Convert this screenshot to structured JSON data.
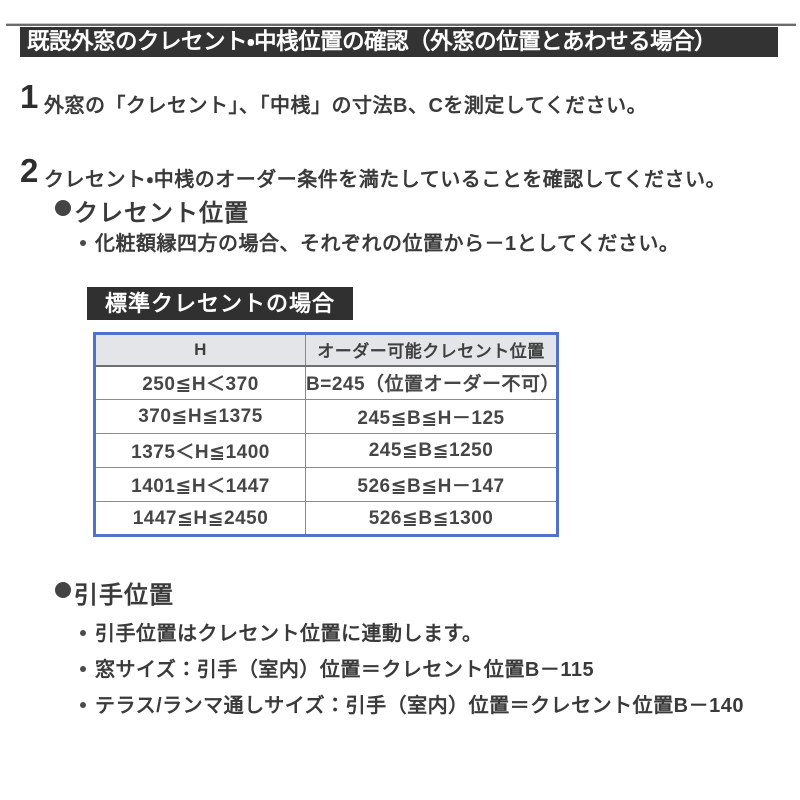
{
  "colors": {
    "bar-bg": "#333333",
    "label-bg": "#303030",
    "table-border": "#5271cc",
    "grid-line": "#8a8a8a",
    "header-cell-bg": "#e3e5e8",
    "rule": "#6b6b6b"
  },
  "title_bar": {
    "text": "既設外窓のクレセント・中桟位置の確認（外窓の位置とあわせる場合）"
  },
  "steps": [
    {
      "number": "1",
      "text": "外窓の「クレセント」、「中桟」の寸法B、Cを測定してください。"
    },
    {
      "number": "2",
      "text": "クレセント・中桟のオーダー条件を満たしていることを確認してください。"
    }
  ],
  "crescent_section": {
    "heading": "クレセント位置",
    "note": "化粧額縁四方の場合、それぞれの位置から－1としてください。",
    "table_label": "標準クレセントの場合"
  },
  "table": {
    "headers": [
      "H",
      "オーダー可能クレセント位置"
    ],
    "rows": [
      [
        "250≦H＜370",
        "B=245（位置オーダー不可）"
      ],
      [
        "370≦H≦1375",
        "245≦B≦H－125"
      ],
      [
        "1375＜H≦1400",
        "245≦B≦1250"
      ],
      [
        "1401≦H＜1447",
        "526≦B≦H－147"
      ],
      [
        "1447≦H≦2450",
        "526≦B≦1300"
      ]
    ]
  },
  "handle_section": {
    "heading": "引手位置",
    "notes": [
      "引手位置はクレセント位置に連動します。",
      "窓サイズ：引手（室内）位置＝クレセント位置B－115",
      "テラス/ランマ通しサイズ：引手（室内）位置＝クレセント位置B－140"
    ]
  }
}
